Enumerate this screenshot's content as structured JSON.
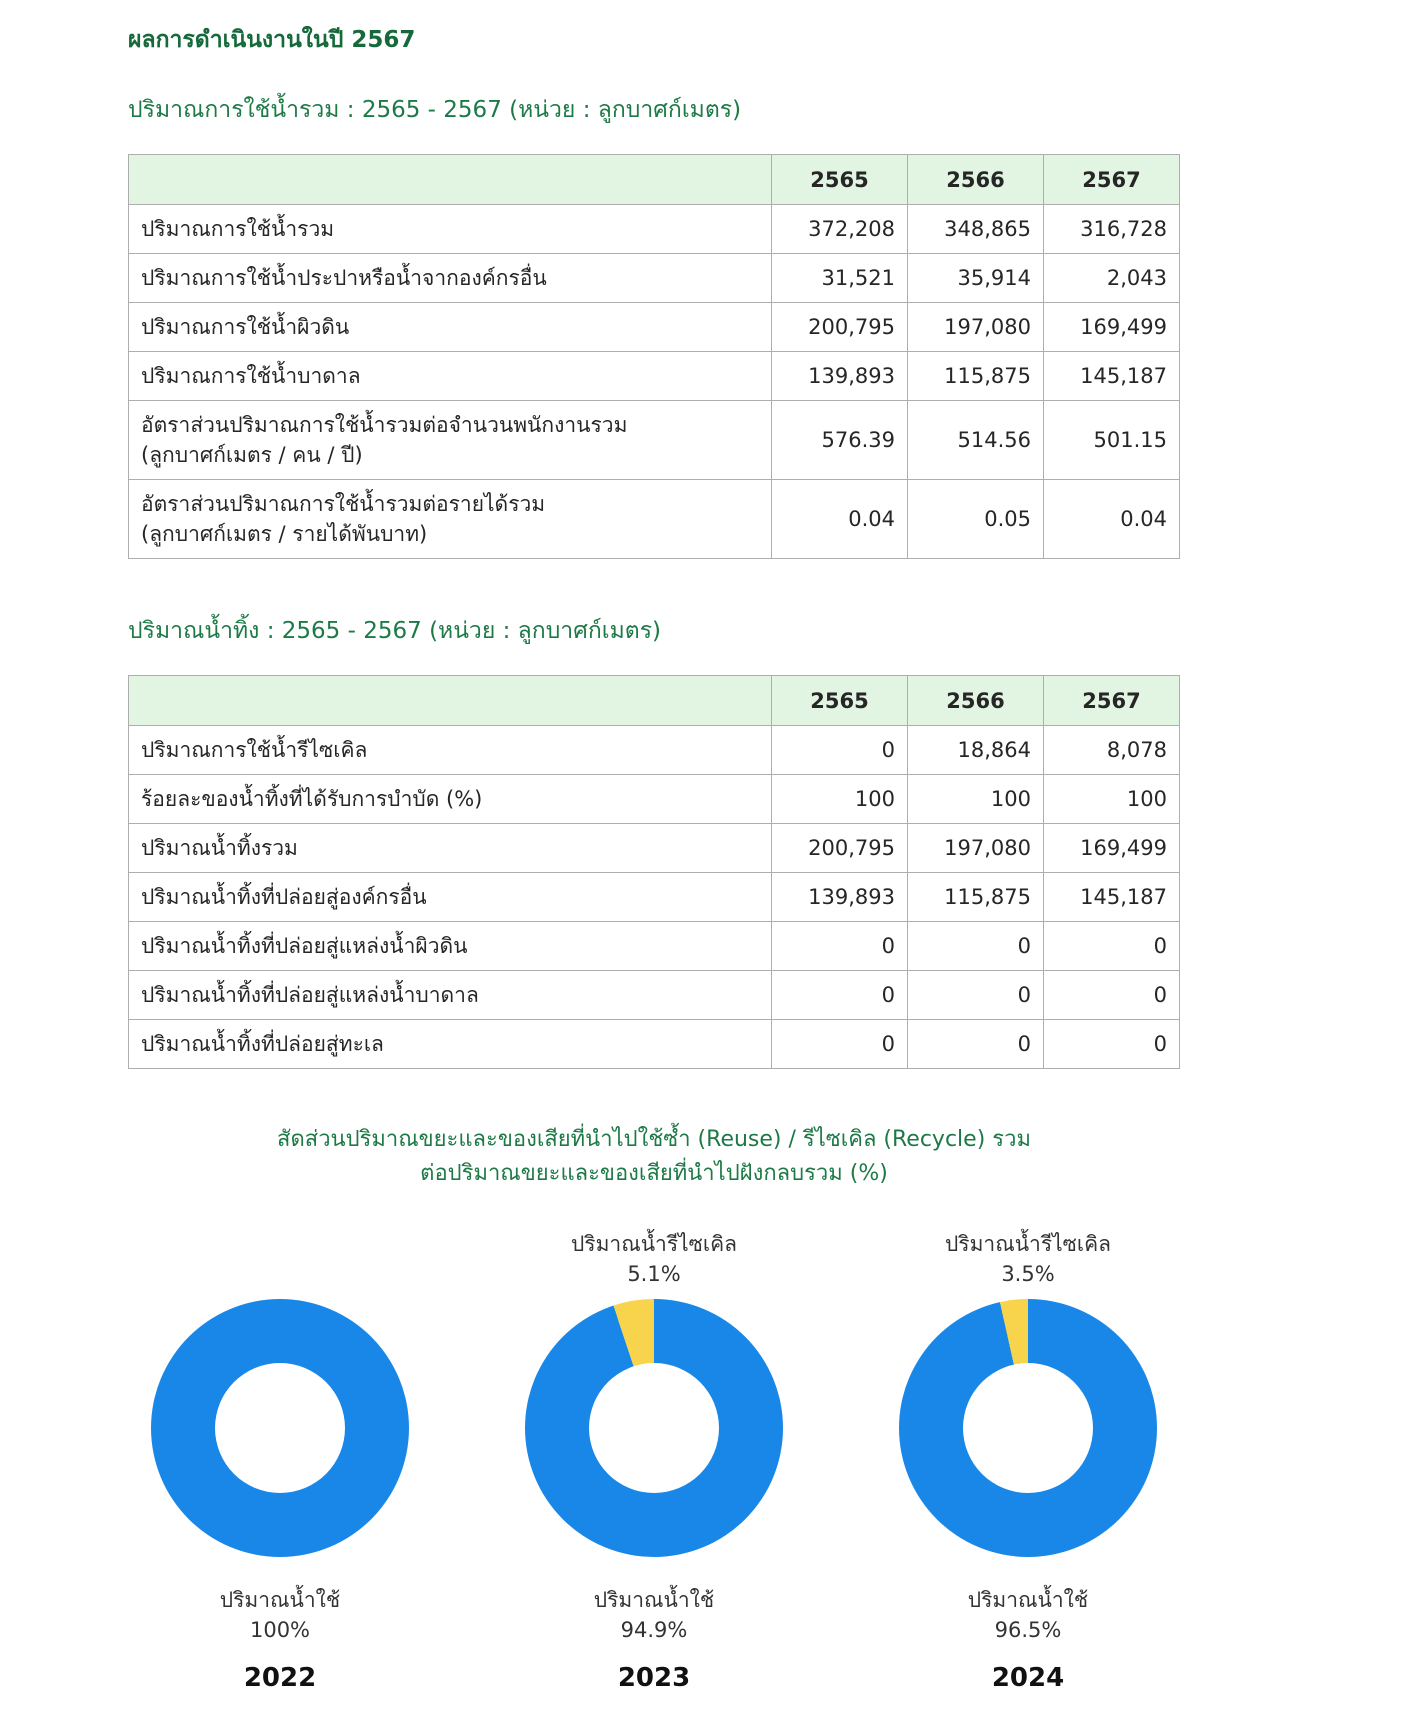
{
  "page": {
    "title": "ผลการดำเนินงานในปี 2567"
  },
  "water_usage": {
    "section_title": "ปริมาณการใช้น้ำรวม : 2565 - 2567 (หน่วย : ลูกบาศก์เมตร)",
    "columns": [
      "2565",
      "2566",
      "2567"
    ],
    "rows": [
      {
        "label": "ปริมาณการใช้น้ำรวม",
        "values": [
          "372,208",
          "348,865",
          "316,728"
        ]
      },
      {
        "label": "ปริมาณการใช้น้ำประปาหรือน้ำจากองค์กรอื่น",
        "values": [
          "31,521",
          "35,914",
          "2,043"
        ]
      },
      {
        "label": "ปริมาณการใช้น้ำผิวดิน",
        "values": [
          "200,795",
          "197,080",
          "169,499"
        ]
      },
      {
        "label": "ปริมาณการใช้น้ำบาดาล",
        "values": [
          "139,893",
          "115,875",
          "145,187"
        ]
      },
      {
        "label": "อัตราส่วนปริมาณการใช้น้ำรวมต่อจำนวนพนักงานรวม",
        "label2": "(ลูกบาศก์เมตร / คน / ปี)",
        "values": [
          "576.39",
          "514.56",
          "501.15"
        ]
      },
      {
        "label": "อัตราส่วนปริมาณการใช้น้ำรวมต่อรายได้รวม",
        "label2": "(ลูกบาศก์เมตร / รายได้พันบาท)",
        "values": [
          "0.04",
          "0.05",
          "0.04"
        ]
      }
    ]
  },
  "wastewater": {
    "section_title": "ปริมาณน้ำทิ้ง : 2565 - 2567 (หน่วย : ลูกบาศก์เมตร)",
    "columns": [
      "2565",
      "2566",
      "2567"
    ],
    "rows": [
      {
        "label": "ปริมาณการใช้น้ำรีไซเคิล",
        "values": [
          "0",
          "18,864",
          "8,078"
        ]
      },
      {
        "label": "ร้อยละของน้ำทิ้งที่ได้รับการบำบัด (%)",
        "values": [
          "100",
          "100",
          "100"
        ]
      },
      {
        "label": "ปริมาณน้ำทิ้งรวม",
        "values": [
          "200,795",
          "197,080",
          "169,499"
        ]
      },
      {
        "label": "ปริมาณน้ำทิ้งที่ปล่อยสู่องค์กรอื่น",
        "values": [
          "139,893",
          "115,875",
          "145,187"
        ]
      },
      {
        "label": "ปริมาณน้ำทิ้งที่ปล่อยสู่แหล่งน้ำผิวดิน",
        "values": [
          "0",
          "0",
          "0"
        ]
      },
      {
        "label": "ปริมาณน้ำทิ้งที่ปล่อยสู่แหล่งน้ำบาดาล",
        "values": [
          "0",
          "0",
          "0"
        ]
      },
      {
        "label": "ปริมาณน้ำทิ้งที่ปล่อยสู่ทะเล",
        "values": [
          "0",
          "0",
          "0"
        ]
      }
    ]
  },
  "chart_data": {
    "type": "pie",
    "title_line1": "สัดส่วนปริมาณขยะและของเสียที่นำไปใช้ซ้ำ (Reuse) / รีไซเคิล (Recycle) รวม",
    "title_line2": "ต่อปริมาณขยะและของเสียที่นำไปฝังกลบรวม (%)",
    "legend_position": "none",
    "colors": {
      "water_use": "#1987e8",
      "recycle": "#f8d44c"
    },
    "charts": [
      {
        "year": "2022",
        "water_use_pct": 100,
        "recycle_pct": 0,
        "top_label": "",
        "top_pct": "",
        "bottom_label": "ปริมาณน้ำใช้",
        "bottom_pct": "100%"
      },
      {
        "year": "2023",
        "water_use_pct": 94.9,
        "recycle_pct": 5.1,
        "top_label": "ปริมาณน้ำรีไซเคิล",
        "top_pct": "5.1%",
        "bottom_label": "ปริมาณน้ำใช้",
        "bottom_pct": "94.9%"
      },
      {
        "year": "2024",
        "water_use_pct": 96.5,
        "recycle_pct": 3.5,
        "top_label": "ปริมาณน้ำรีไซเคิล",
        "top_pct": "3.5%",
        "bottom_label": "ปริมาณน้ำใช้",
        "bottom_pct": "96.5%"
      }
    ]
  }
}
